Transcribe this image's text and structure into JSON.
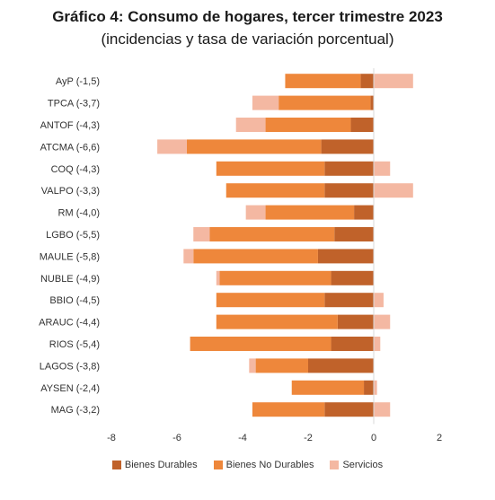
{
  "title": "Gráfico 4: Consumo de hogares, tercer trimestre 2023",
  "subtitle": "(incidencias y tasa de variación porcentual)",
  "colors": {
    "durables": "#c0622a",
    "no_durables": "#ee873b",
    "servicios": "#f4b8a2"
  },
  "legend": [
    "Bienes Durables",
    "Bienes No Durables",
    "Servicios"
  ],
  "chart_data": {
    "type": "bar",
    "orientation": "horizontal",
    "stacked": true,
    "title": "Gráfico 4: Consumo de hogares, tercer trimestre 2023",
    "subtitle": "(incidencias y tasa de variación porcentual)",
    "categories": [
      "AyP (-1,5)",
      "TPCA (-3,7)",
      "ANTOF (-4,3)",
      "ATCMA (-6,6)",
      "COQ (-4,3)",
      "VALPO (-3,3)",
      "RM (-4,0)",
      "LGBO (-5,5)",
      "MAULE (-5,8)",
      "NUBLE (-4,9)",
      "BBIO (-4,5)",
      "ARAUC (-4,4)",
      "RIOS (-5,4)",
      "LAGOS (-3,8)",
      "AYSEN (-2,4)",
      "MAG (-3,2)"
    ],
    "series": [
      {
        "name": "Bienes Durables",
        "values": [
          -0.4,
          -0.1,
          -0.7,
          -1.6,
          -1.5,
          -1.5,
          -0.6,
          -1.2,
          -1.7,
          -1.3,
          -1.5,
          -1.1,
          -1.3,
          -2.0,
          -0.3,
          -1.5
        ]
      },
      {
        "name": "Bienes No Durables",
        "values": [
          -2.3,
          -2.8,
          -2.6,
          -4.1,
          -3.3,
          -3.0,
          -2.7,
          -3.8,
          -3.8,
          -3.4,
          -3.3,
          -3.7,
          -4.3,
          -1.6,
          -2.2,
          -2.2
        ]
      },
      {
        "name": "Servicios",
        "values": [
          1.2,
          -0.8,
          -0.9,
          -0.9,
          0.5,
          1.2,
          -0.6,
          -0.5,
          -0.3,
          -0.1,
          0.3,
          0.5,
          0.2,
          -0.2,
          0.1,
          0.5
        ]
      }
    ],
    "xlim": [
      -8,
      2
    ],
    "xticks": [
      -8,
      -6,
      -4,
      -2,
      0,
      2
    ],
    "grid": false,
    "legend_position": "bottom"
  }
}
